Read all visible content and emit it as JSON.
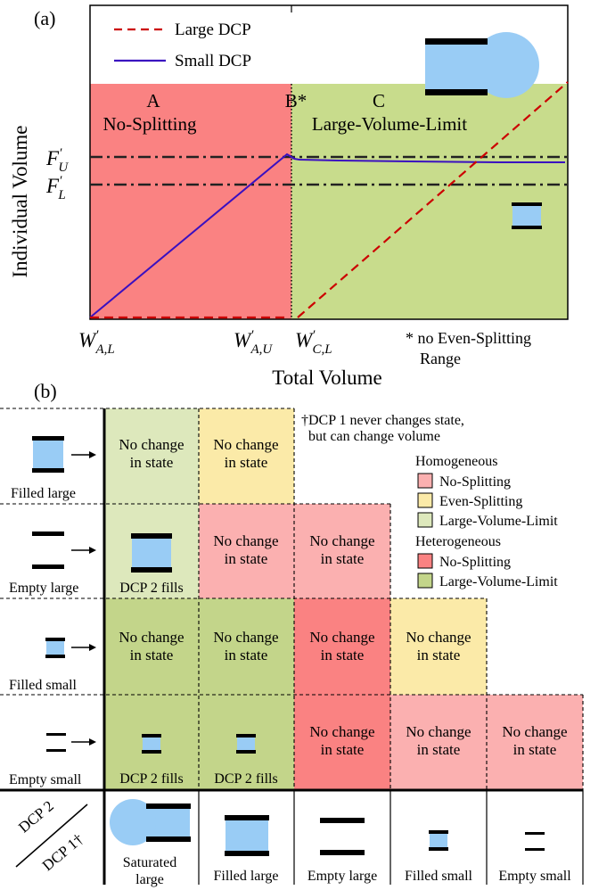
{
  "panel_a": {
    "panel_label": "(a)",
    "legend": [
      {
        "label": "Large DCP",
        "color": "#cc0000",
        "style": "dashed"
      },
      {
        "label": "Small DCP",
        "color": "#3a10c0",
        "style": "solid"
      }
    ],
    "regions": [
      {
        "letter": "A",
        "name": "No-Splitting",
        "color": "#fa8282"
      },
      {
        "letter": "B*",
        "name": "",
        "color": ""
      },
      {
        "letter": "C",
        "name": "Large-Volume-Limit",
        "color": "#c8dc8c"
      }
    ],
    "y_axis_label": "Individual Volume",
    "x_axis_label": "Total Volume",
    "y_ticks": [
      {
        "base": "F",
        "sup": "′",
        "sub": "U"
      },
      {
        "base": "F",
        "sup": "′",
        "sub": "L"
      }
    ],
    "x_ticks": [
      {
        "base": "W",
        "sup": "′",
        "sub": "A,L"
      },
      {
        "base": "W",
        "sup": "′",
        "sub": "A,U"
      },
      {
        "base": "W",
        "sup": "′",
        "sub": "C,L"
      }
    ],
    "footnote_line1": "* no Even-Splitting",
    "footnote_line2": "Range",
    "fluid_color": "#99ccf5"
  },
  "panel_b": {
    "panel_label": "(b)",
    "footnote_line1": "†DCP 1 never changes state,",
    "footnote_line2": "but can change volume",
    "legend_homogeneous_title": "Homogeneous",
    "legend_heterogeneous_title": "Heterogeneous",
    "legend_homogeneous": [
      {
        "label": "No-Splitting",
        "color": "#fbb0b0"
      },
      {
        "label": "Even-Splitting",
        "color": "#fbeaa8"
      },
      {
        "label": "Large-Volume-Limit",
        "color": "#dde8bc"
      }
    ],
    "legend_heterogeneous": [
      {
        "label": "No-Splitting",
        "color": "#fa8282"
      },
      {
        "label": "Large-Volume-Limit",
        "color": "#c3d58a"
      }
    ],
    "row_labels": [
      "Filled large",
      "Empty large",
      "Filled small",
      "Empty small"
    ],
    "row_axis_label": "DCP 2",
    "col_axis_label": "DCP 1†",
    "col_labels": [
      "Saturated large",
      "Filled large",
      "Empty large",
      "Filled small",
      "Empty small"
    ],
    "cell_texts": {
      "no_change_line1": "No change",
      "no_change_line2": "in state",
      "dcp2_fills": "DCP 2 fills"
    }
  }
}
